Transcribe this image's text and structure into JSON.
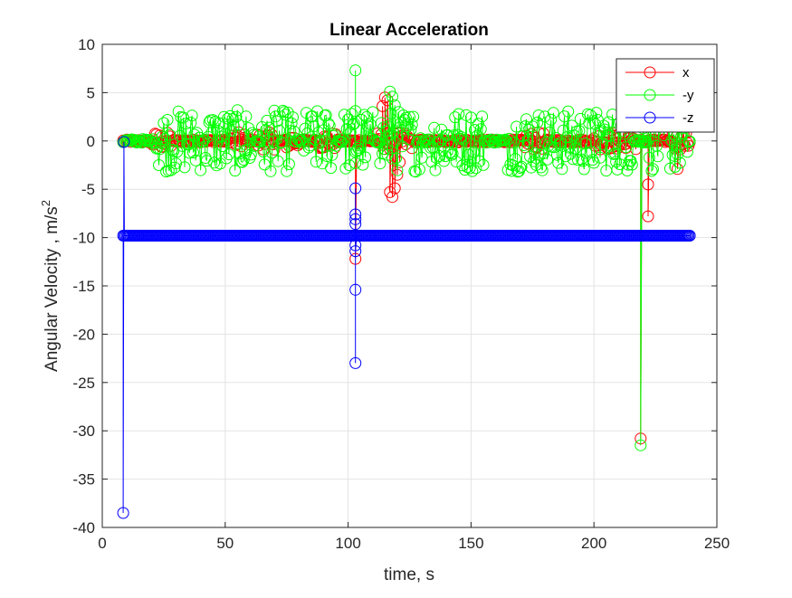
{
  "chart_data": {
    "type": "scatter",
    "title": "Linear Acceleration",
    "xlabel": "time, s",
    "ylabel_main": "Angular Velocity , m/s",
    "ylabel_superscript": "2",
    "xlim": [
      0,
      250
    ],
    "ylim": [
      -40,
      10
    ],
    "xticks": [
      0,
      50,
      100,
      150,
      200,
      250
    ],
    "yticks": [
      10,
      5,
      0,
      -5,
      -10,
      -15,
      -20,
      -25,
      -30,
      -35,
      -40
    ],
    "grid": true,
    "legend_position": "top-right",
    "marker": "circle",
    "series": [
      {
        "name": "x",
        "color": "#ff0000",
        "base": 0,
        "start": 8.5,
        "end": 239,
        "band": [
          0.15,
          0.9
        ],
        "band_ranges": [
          [
            20,
            28
          ],
          [
            52,
            58
          ],
          [
            63,
            70
          ],
          [
            75,
            80
          ],
          [
            88,
            95
          ],
          [
            112,
            126
          ],
          [
            172,
            180
          ],
          [
            200,
            218
          ],
          [
            232,
            239
          ]
        ],
        "outliers": [
          [
            8.5,
            -0.1
          ],
          [
            103,
            -12.2
          ],
          [
            114,
            3.6
          ],
          [
            115,
            4.5
          ],
          [
            116,
            4.2
          ],
          [
            117,
            -5.3
          ],
          [
            118,
            -5.8
          ],
          [
            119,
            -4.9
          ],
          [
            120,
            -3.5
          ],
          [
            121,
            -2.2
          ],
          [
            219,
            -30.8
          ],
          [
            222,
            -4.5
          ],
          [
            222,
            -7.8
          ],
          [
            234,
            -2.9
          ]
        ]
      },
      {
        "name": "-y",
        "color": "#00ff00",
        "base": 0,
        "start": 8.5,
        "end": 239,
        "band": [
          0.2,
          3.2
        ],
        "band_ranges": [
          [
            22,
            40
          ],
          [
            42,
            62
          ],
          [
            65,
            78
          ],
          [
            82,
            95
          ],
          [
            98,
            110
          ],
          [
            113,
            130
          ],
          [
            133,
            155
          ],
          [
            165,
            200
          ],
          [
            200,
            216
          ],
          [
            222,
            238
          ]
        ],
        "outliers": [
          [
            103,
            7.3
          ],
          [
            103,
            3.1
          ],
          [
            103,
            -2.3
          ],
          [
            117,
            5.1
          ],
          [
            118,
            4.6
          ],
          [
            119,
            3.7
          ],
          [
            219,
            -31.5
          ],
          [
            220,
            1.3
          ]
        ]
      },
      {
        "name": "-z",
        "color": "#0000ff",
        "base": -9.8,
        "start": 8.5,
        "end": 239,
        "band": [
          0,
          0.05
        ],
        "band_ranges": [],
        "outliers": [
          [
            8.5,
            -38.5
          ],
          [
            8.8,
            -0.1
          ],
          [
            103,
            -23
          ],
          [
            103,
            -15.4
          ],
          [
            103,
            -4.9
          ],
          [
            103,
            -7.6
          ],
          [
            103,
            -8.1
          ],
          [
            103,
            -8.6
          ],
          [
            103,
            -10.8
          ],
          [
            103,
            -11.4
          ]
        ]
      }
    ],
    "legend_entries": [
      "x",
      "-y",
      "-z"
    ]
  }
}
